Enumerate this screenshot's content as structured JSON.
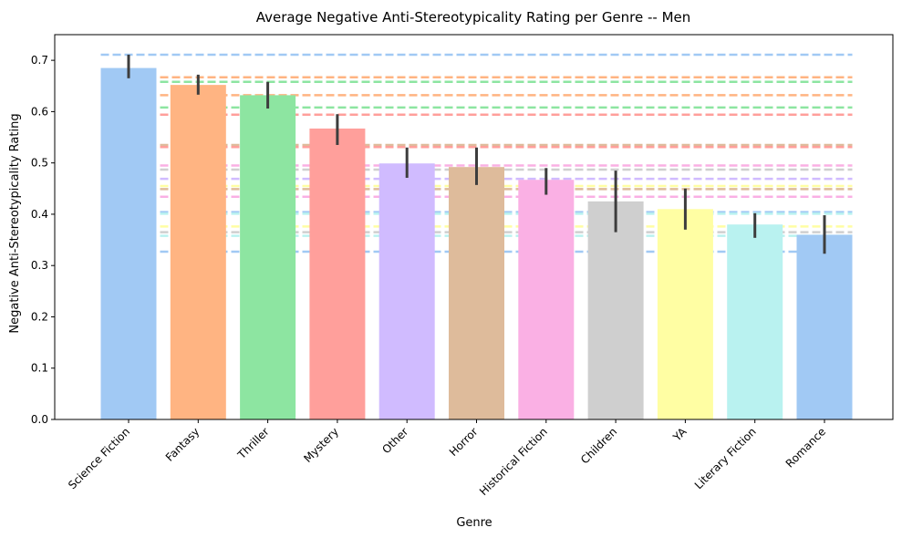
{
  "chart_data": {
    "type": "bar",
    "title": "Average Negative Anti-Stereotypicality Rating per Genre -- Men",
    "xlabel": "Genre",
    "ylabel": "Negative Anti-Stereotypicality Rating",
    "ylim": [
      0,
      0.75
    ],
    "yticks": [
      "0.0",
      "0.1",
      "0.2",
      "0.3",
      "0.4",
      "0.5",
      "0.6",
      "0.7"
    ],
    "grid": false,
    "categories": [
      "Science Fiction",
      "Fantasy",
      "Thriller",
      "Mystery",
      "Other",
      "Horror",
      "Historical Fiction",
      "Children",
      "YA",
      "Literary Fiction",
      "Romance"
    ],
    "values": [
      0.685,
      0.652,
      0.632,
      0.567,
      0.499,
      0.492,
      0.467,
      0.425,
      0.41,
      0.38,
      0.36
    ],
    "error_low": [
      0.665,
      0.633,
      0.606,
      0.535,
      0.471,
      0.457,
      0.438,
      0.365,
      0.37,
      0.354,
      0.323
    ],
    "error_high": [
      0.711,
      0.672,
      0.658,
      0.595,
      0.53,
      0.53,
      0.49,
      0.485,
      0.45,
      0.402,
      0.398
    ],
    "colors": [
      "#a1c9f4",
      "#ffb482",
      "#8de5a1",
      "#ff9f9b",
      "#d0bbff",
      "#debb9b",
      "#fab0e4",
      "#cfcfcf",
      "#fffea3",
      "#b9f2f0",
      "#a1c9f4"
    ],
    "reference_lines": [
      {
        "value": 0.711,
        "color": "#a1c9f4"
      },
      {
        "value": 0.667,
        "color": "#ffb482"
      },
      {
        "value": 0.658,
        "color": "#8de5a1"
      },
      {
        "value": 0.632,
        "color": "#ffb482"
      },
      {
        "value": 0.608,
        "color": "#8de5a1"
      },
      {
        "value": 0.594,
        "color": "#ff9f9b"
      },
      {
        "value": 0.535,
        "color": "#debb9b"
      },
      {
        "value": 0.531,
        "color": "#ff9f9b"
      },
      {
        "value": 0.495,
        "color": "#fab0e4"
      },
      {
        "value": 0.487,
        "color": "#cfcfcf"
      },
      {
        "value": 0.469,
        "color": "#d0bbff"
      },
      {
        "value": 0.455,
        "color": "#fffea3"
      },
      {
        "value": 0.449,
        "color": "#debb9b"
      },
      {
        "value": 0.434,
        "color": "#fab0e4"
      },
      {
        "value": 0.404,
        "color": "#a1c9f4"
      },
      {
        "value": 0.401,
        "color": "#b9f2f0"
      },
      {
        "value": 0.376,
        "color": "#fffea3"
      },
      {
        "value": 0.365,
        "color": "#cfcfcf"
      },
      {
        "value": 0.358,
        "color": "#b9f2f0"
      },
      {
        "value": 0.327,
        "color": "#a1c9f4"
      }
    ]
  }
}
